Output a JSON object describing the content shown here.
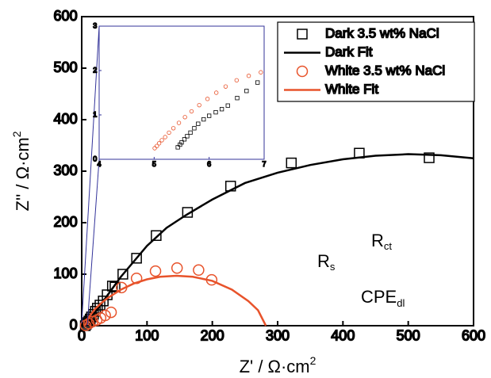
{
  "chart_data": [
    {
      "type": "scatter",
      "x_label": {
        "text": "Z' / Ω·cm",
        "sup": "2"
      },
      "y_label": {
        "text": "Z'' / Ω·cm",
        "sup": "2"
      },
      "xlim": [
        0,
        600
      ],
      "ylim": [
        0,
        600
      ],
      "xticks": [
        0,
        100,
        200,
        300,
        400,
        500,
        600
      ],
      "yticks": [
        0,
        100,
        200,
        300,
        400,
        500,
        600
      ],
      "legend": "top-right",
      "series": [
        {
          "name": "Dark 3.5 wt% NaCl",
          "color": "#000000",
          "marker": "square",
          "x": [
            5.5,
            7,
            9,
            11,
            13,
            15,
            18,
            21,
            24,
            28,
            33,
            39,
            47,
            51,
            63,
            84,
            114,
            162,
            228,
            321,
            425,
            532
          ],
          "values": [
            0,
            3,
            6,
            9,
            13,
            17,
            22,
            28,
            34,
            40,
            48,
            60,
            77,
            75,
            100,
            131,
            175,
            220,
            271,
            316,
            335,
            326
          ]
        },
        {
          "name": "Dark Fit",
          "color": "#000000",
          "marker": "line",
          "x": [
            5,
            10,
            20,
            30,
            40,
            60,
            80,
            100,
            130,
            160,
            200,
            250,
            300,
            350,
            400,
            450,
            500,
            550,
            600
          ],
          "values": [
            0,
            8,
            25,
            42,
            60,
            95,
            125,
            155,
            190,
            215,
            245,
            277,
            297,
            312,
            323,
            330,
            333,
            331,
            325
          ]
        },
        {
          "name": "White 3.5 wt% NaCl",
          "color": "#e8532b",
          "marker": "circle",
          "x": [
            6,
            11,
            17,
            23,
            29,
            36,
            45,
            61,
            84,
            113,
            146,
            179,
            199
          ],
          "values": [
            0.5,
            4,
            8,
            11,
            15,
            20,
            26,
            74,
            92,
            106,
            112,
            108,
            89
          ]
        },
        {
          "name": "White Fit",
          "color": "#e8532b",
          "marker": "line",
          "x": [
            5,
            10,
            20,
            30,
            40,
            60,
            80,
            100,
            120,
            145,
            170,
            200,
            230,
            255,
            270,
            282
          ],
          "values": [
            0,
            15,
            32,
            44,
            54,
            70,
            82,
            90,
            95,
            97,
            95,
            87,
            70,
            48,
            30,
            0
          ]
        }
      ],
      "annotations": [
        {
          "text": "R",
          "sub": "s"
        },
        {
          "text": "R",
          "sub": "ct"
        },
        {
          "text": "CPE",
          "sub": "dl"
        }
      ]
    },
    {
      "type": "scatter",
      "xlim": [
        4,
        7
      ],
      "ylim": [
        0,
        3
      ],
      "xticks": [
        4,
        5,
        6,
        7
      ],
      "yticks": [
        0,
        1,
        2,
        3
      ],
      "series": [
        {
          "color": "#000000",
          "marker": "square",
          "x": [
            5.43,
            5.47,
            5.5,
            5.55,
            5.6,
            5.66,
            5.73,
            5.8,
            5.9,
            6.0,
            6.12,
            6.23,
            6.34,
            6.51,
            6.68,
            6.88
          ],
          "values": [
            0.27,
            0.33,
            0.38,
            0.45,
            0.52,
            0.6,
            0.7,
            0.8,
            0.9,
            0.98,
            1.06,
            1.13,
            1.21,
            1.38,
            1.54,
            1.73
          ]
        },
        {
          "color": "#e8532b",
          "marker": "circle",
          "x": [
            5.01,
            5.05,
            5.09,
            5.14,
            5.2,
            5.27,
            5.35,
            5.45,
            5.56,
            5.68,
            5.82,
            5.97,
            6.13,
            6.3,
            6.5,
            6.72,
            6.94
          ],
          "values": [
            0.25,
            0.3,
            0.36,
            0.43,
            0.5,
            0.6,
            0.7,
            0.82,
            0.95,
            1.08,
            1.22,
            1.36,
            1.5,
            1.64,
            1.78,
            1.88,
            1.96
          ]
        }
      ]
    }
  ]
}
